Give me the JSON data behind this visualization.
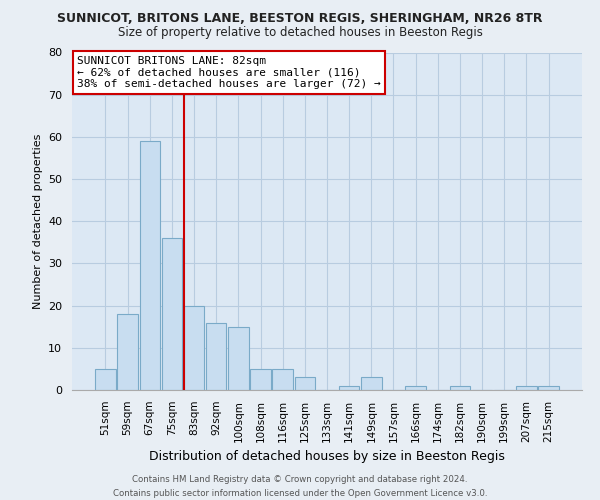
{
  "title": "SUNNICOT, BRITONS LANE, BEESTON REGIS, SHERINGHAM, NR26 8TR",
  "subtitle": "Size of property relative to detached houses in Beeston Regis",
  "xlabel": "Distribution of detached houses by size in Beeston Regis",
  "ylabel": "Number of detached properties",
  "bar_labels": [
    "51sqm",
    "59sqm",
    "67sqm",
    "75sqm",
    "83sqm",
    "92sqm",
    "100sqm",
    "108sqm",
    "116sqm",
    "125sqm",
    "133sqm",
    "141sqm",
    "149sqm",
    "157sqm",
    "166sqm",
    "174sqm",
    "182sqm",
    "190sqm",
    "199sqm",
    "207sqm",
    "215sqm"
  ],
  "bar_values": [
    5,
    18,
    59,
    36,
    20,
    16,
    15,
    5,
    5,
    3,
    0,
    1,
    3,
    0,
    1,
    0,
    1,
    0,
    0,
    1,
    1
  ],
  "bar_color": "#c8ddf0",
  "bar_edge_color": "#7aaac8",
  "vline_index": 4,
  "vline_color": "#cc0000",
  "annotation_title": "SUNNICOT BRITONS LANE: 82sqm",
  "annotation_line1": "← 62% of detached houses are smaller (116)",
  "annotation_line2": "38% of semi-detached houses are larger (72) →",
  "annotation_box_color": "#ffffff",
  "annotation_box_edge": "#cc0000",
  "ylim": [
    0,
    80
  ],
  "yticks": [
    0,
    10,
    20,
    30,
    40,
    50,
    60,
    70,
    80
  ],
  "footer_line1": "Contains HM Land Registry data © Crown copyright and database right 2024.",
  "footer_line2": "Contains public sector information licensed under the Open Government Licence v3.0.",
  "bg_color": "#e8eef4",
  "plot_bg_color": "#dce8f4",
  "grid_color": "#b8cce0"
}
